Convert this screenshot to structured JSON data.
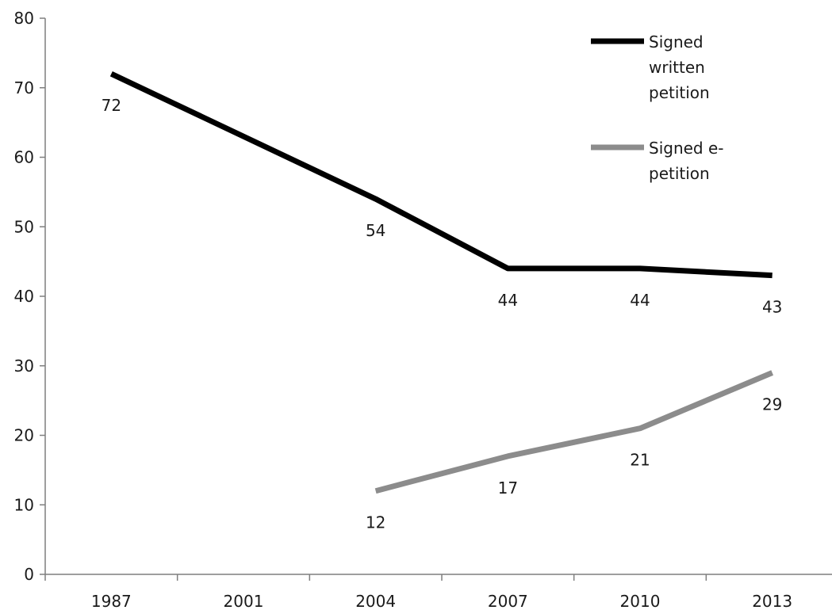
{
  "chart_data": {
    "type": "line",
    "categories": [
      "1987",
      "2001",
      "2004",
      "2007",
      "2010",
      "2013"
    ],
    "ylim": [
      0,
      80
    ],
    "yticks": [
      0,
      10,
      20,
      30,
      40,
      50,
      60,
      70,
      80
    ],
    "grid": false,
    "legend_position": "top-right",
    "series": [
      {
        "name": "Signed written petition",
        "legend_lines": [
          "Signed",
          "written",
          "petition"
        ],
        "color": "#000000",
        "points": [
          {
            "x": "1987",
            "y": 72,
            "label": "72"
          },
          {
            "x": "2004",
            "y": 54,
            "label": "54"
          },
          {
            "x": "2007",
            "y": 44,
            "label": "44"
          },
          {
            "x": "2010",
            "y": 44,
            "label": "44"
          },
          {
            "x": "2013",
            "y": 43,
            "label": "43"
          }
        ]
      },
      {
        "name": "Signed e-petition",
        "legend_lines": [
          "Signed e-",
          "petition"
        ],
        "color": "#8c8c8c",
        "points": [
          {
            "x": "2004",
            "y": 12,
            "label": "12"
          },
          {
            "x": "2007",
            "y": 17,
            "label": "17"
          },
          {
            "x": "2010",
            "y": 21,
            "label": "21"
          },
          {
            "x": "2013",
            "y": 29,
            "label": "29"
          }
        ]
      }
    ]
  }
}
